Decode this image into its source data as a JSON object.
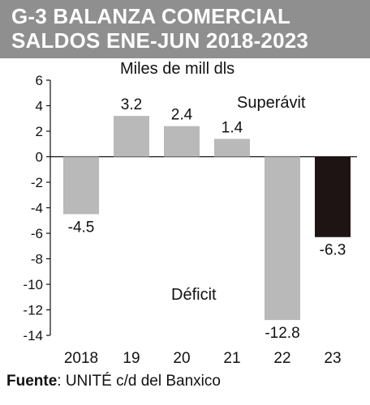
{
  "header": {
    "title_line1": "G-3  BALANZA COMERCIAL",
    "title_line2": "SALDOS ENE-JUN 2018-2023"
  },
  "unit_label": "Miles de mill dls",
  "annotations": {
    "surplus": "Superávit",
    "deficit": "Déficit"
  },
  "source": {
    "label": "Fuente",
    "text": ": UNITÉ c/d del Banxico"
  },
  "colors": {
    "header_bg": "#8f8f8f",
    "bar_gray": "#b9b9b9",
    "bar_highlight": "#1f1414"
  },
  "chart_data": {
    "type": "bar",
    "categories": [
      "2018",
      "19",
      "20",
      "21",
      "22",
      "23"
    ],
    "values": [
      -4.5,
      3.2,
      2.4,
      1.4,
      -12.8,
      -6.3
    ],
    "value_labels": [
      "-4.5",
      "3.2",
      "2.4",
      "1.4",
      "-12.8",
      "-6.3"
    ],
    "highlight_index": 5,
    "ylabel": "Miles de mill dls",
    "ylim": [
      -14,
      6
    ],
    "yticks": [
      6,
      4,
      2,
      0,
      -2,
      -4,
      -6,
      -8,
      -10,
      -12,
      -14
    ],
    "grid": false
  }
}
